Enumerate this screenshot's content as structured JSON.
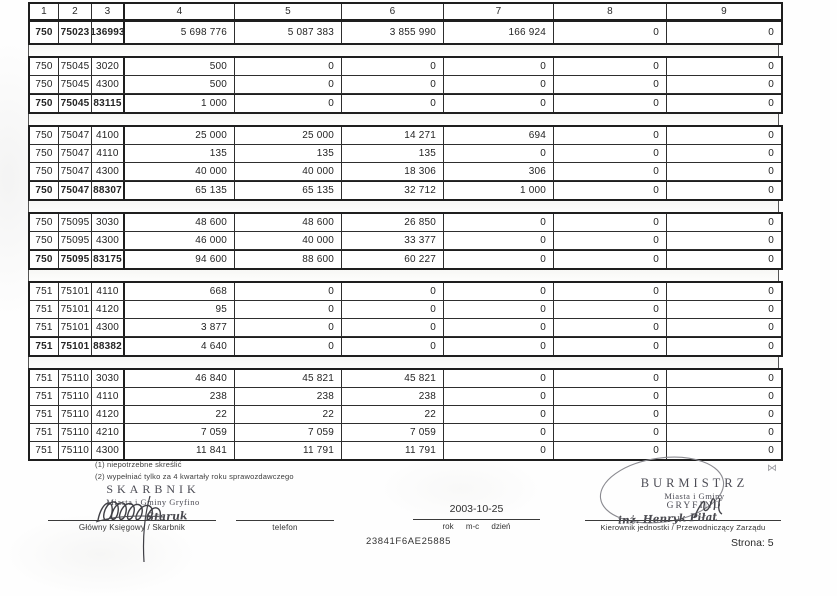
{
  "table": {
    "headers": [
      "1",
      "2",
      "3",
      "4",
      "5",
      "6",
      "7",
      "8",
      "9"
    ],
    "blocks": [
      {
        "has_header": true,
        "rows": [
          {
            "cells": [
              "750",
              "75023",
              "136993",
              "5 698 776",
              "5 087 383",
              "3 855 990",
              "166 924",
              "0",
              "0"
            ],
            "summary": true,
            "tall": true
          }
        ]
      },
      {
        "rows": [
          {
            "cells": [
              "750",
              "75045",
              "3020",
              "500",
              "0",
              "0",
              "0",
              "0",
              "0"
            ],
            "summary": false
          },
          {
            "cells": [
              "750",
              "75045",
              "4300",
              "500",
              "0",
              "0",
              "0",
              "0",
              "0"
            ],
            "summary": false
          },
          {
            "cells": [
              "750",
              "75045",
              "83115",
              "1 000",
              "0",
              "0",
              "0",
              "0",
              "0"
            ],
            "summary": true
          }
        ]
      },
      {
        "rows": [
          {
            "cells": [
              "750",
              "75047",
              "4100",
              "25 000",
              "25 000",
              "14 271",
              "694",
              "0",
              "0"
            ],
            "summary": false
          },
          {
            "cells": [
              "750",
              "75047",
              "4110",
              "135",
              "135",
              "135",
              "0",
              "0",
              "0"
            ],
            "summary": false
          },
          {
            "cells": [
              "750",
              "75047",
              "4300",
              "40 000",
              "40 000",
              "18 306",
              "306",
              "0",
              "0"
            ],
            "summary": false
          },
          {
            "cells": [
              "750",
              "75047",
              "88307",
              "65 135",
              "65 135",
              "32 712",
              "1 000",
              "0",
              "0"
            ],
            "summary": true
          }
        ]
      },
      {
        "rows": [
          {
            "cells": [
              "750",
              "75095",
              "3030",
              "48 600",
              "48 600",
              "26 850",
              "0",
              "0",
              "0"
            ],
            "summary": false
          },
          {
            "cells": [
              "750",
              "75095",
              "4300",
              "46 000",
              "40 000",
              "33 377",
              "0",
              "0",
              "0"
            ],
            "summary": false
          },
          {
            "cells": [
              "750",
              "75095",
              "83175",
              "94 600",
              "88 600",
              "60 227",
              "0",
              "0",
              "0"
            ],
            "summary": true
          }
        ]
      },
      {
        "rows": [
          {
            "cells": [
              "751",
              "75101",
              "4110",
              "668",
              "0",
              "0",
              "0",
              "0",
              "0"
            ],
            "summary": false
          },
          {
            "cells": [
              "751",
              "75101",
              "4120",
              "95",
              "0",
              "0",
              "0",
              "0",
              "0"
            ],
            "summary": false
          },
          {
            "cells": [
              "751",
              "75101",
              "4300",
              "3 877",
              "0",
              "0",
              "0",
              "0",
              "0"
            ],
            "summary": false
          },
          {
            "cells": [
              "751",
              "75101",
              "88382",
              "4 640",
              "0",
              "0",
              "0",
              "0",
              "0"
            ],
            "summary": true
          }
        ]
      },
      {
        "rows": [
          {
            "cells": [
              "751",
              "75110",
              "3030",
              "46 840",
              "45 821",
              "45 821",
              "0",
              "0",
              "0"
            ],
            "summary": false
          },
          {
            "cells": [
              "751",
              "75110",
              "4110",
              "238",
              "238",
              "238",
              "0",
              "0",
              "0"
            ],
            "summary": false
          },
          {
            "cells": [
              "751",
              "75110",
              "4120",
              "22",
              "22",
              "22",
              "0",
              "0",
              "0"
            ],
            "summary": false
          },
          {
            "cells": [
              "751",
              "75110",
              "4210",
              "7 059",
              "7 059",
              "7 059",
              "0",
              "0",
              "0"
            ],
            "summary": false
          },
          {
            "cells": [
              "751",
              "75110",
              "4300",
              "11 841",
              "11 791",
              "11 791",
              "0",
              "0",
              "0"
            ],
            "summary": false
          }
        ]
      }
    ]
  },
  "footer": {
    "footnote1": "(1) niepotrzebne skreślić",
    "footnote2": "(2) wypełniać tylko za 4 kwartały roku sprawozdawczego",
    "date_value": "2003-10-25",
    "date_caption": "rok m-c dzień",
    "verification_code": "23841F6AE25885",
    "page_label": "Strona: 5",
    "corner_mark": "⋈",
    "signatures": {
      "left_label": "Główny Księgowy / Skarbnik",
      "left_overlay": "Staruk",
      "telefon_label": "telefon",
      "right_label": "Kierownik jednostki / Przewodniczący Zarządu",
      "right_overlay": "inż. Henryk Piłat"
    },
    "stamps": {
      "skarbnik_line1": "SKARBNIK",
      "skarbnik_line2": "Miasta i Gminy Gryfino",
      "burmistrz_line1": "BURMISTRZ",
      "burmistrz_line2": "Miasta i Gminy",
      "burmistrz_line3": "GRYFINO"
    }
  },
  "colors": {
    "border": "#1e1e1e",
    "stamp_gray": "#4c4c55",
    "text": "#242424"
  }
}
